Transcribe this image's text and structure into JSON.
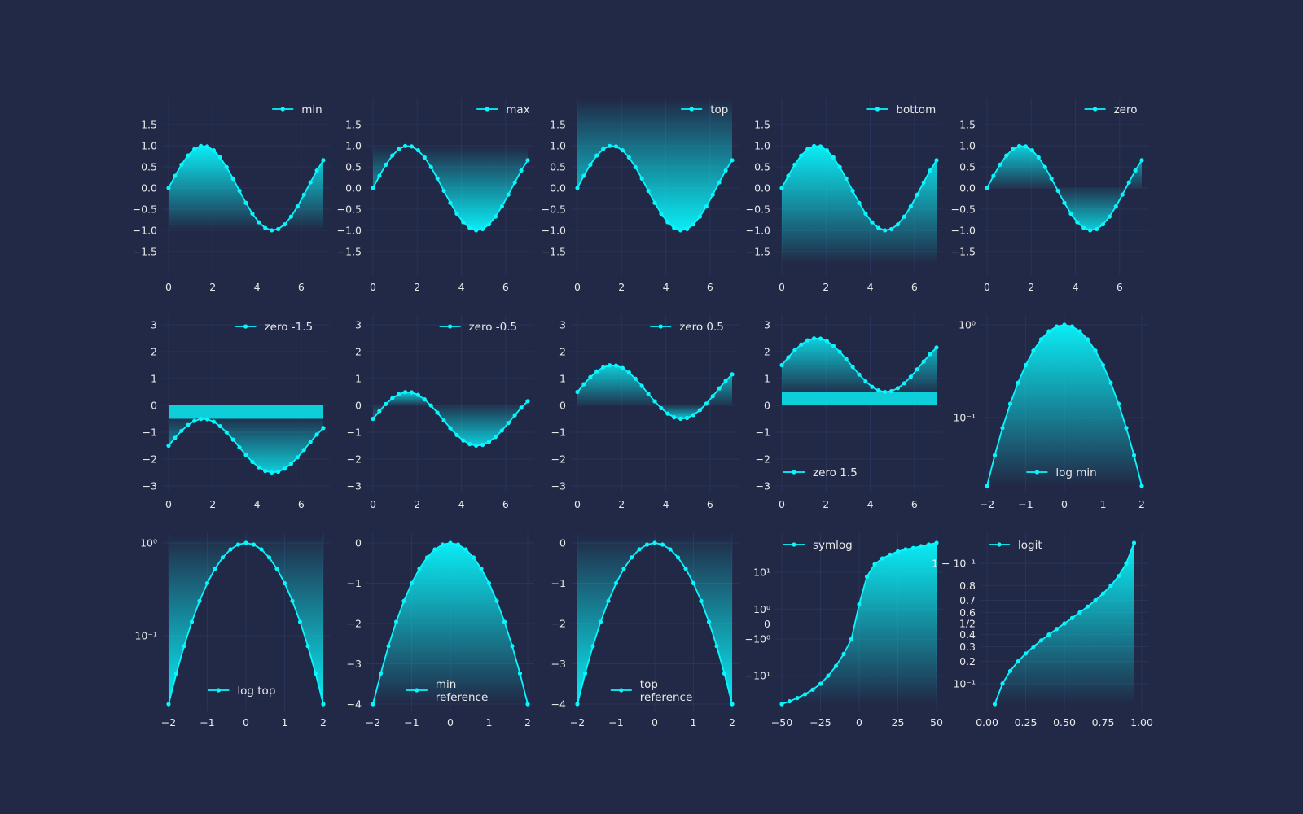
{
  "chart_data": [
    {
      "type": "area",
      "legend": "min",
      "legend_pos": "top-right",
      "x_range": [
        -0.3,
        7.3
      ],
      "y_range": [
        -1.75,
        1.75
      ],
      "x_ticks": [
        "0",
        "2",
        "4",
        "6"
      ],
      "y_ticks": [
        "−1.5",
        "−1.0",
        "−0.5",
        "0.0",
        "0.5",
        "1.0",
        "1.5"
      ],
      "series": [
        {
          "offset": 0
        }
      ],
      "fill_mode": "min"
    },
    {
      "type": "area",
      "legend": "max",
      "legend_pos": "top-right",
      "x_range": [
        -0.3,
        7.3
      ],
      "y_range": [
        -1.75,
        1.75
      ],
      "x_ticks": [
        "0",
        "2",
        "4",
        "6"
      ],
      "y_ticks": [
        "−1.5",
        "−1.0",
        "−0.5",
        "0.0",
        "0.5",
        "1.0",
        "1.5"
      ],
      "series": [
        {
          "offset": 0
        }
      ],
      "fill_mode": "max"
    },
    {
      "type": "area",
      "legend": "top",
      "legend_pos": "top-right",
      "x_range": [
        -0.3,
        7.3
      ],
      "y_range": [
        -1.75,
        1.75
      ],
      "x_ticks": [
        "0",
        "2",
        "4",
        "6"
      ],
      "y_ticks": [
        "−1.5",
        "−1.0",
        "−0.5",
        "0.0",
        "0.5",
        "1.0",
        "1.5"
      ],
      "series": [
        {
          "offset": 0
        }
      ],
      "fill_mode": "top"
    },
    {
      "type": "area",
      "legend": "bottom",
      "legend_pos": "top-right",
      "x_range": [
        -0.3,
        7.3
      ],
      "y_range": [
        -1.75,
        1.75
      ],
      "x_ticks": [
        "0",
        "2",
        "4",
        "6"
      ],
      "y_ticks": [
        "−1.5",
        "−1.0",
        "−0.5",
        "0.0",
        "0.5",
        "1.0",
        "1.5"
      ],
      "series": [
        {
          "offset": 0
        }
      ],
      "fill_mode": "bottom"
    },
    {
      "type": "area",
      "legend": "zero",
      "legend_pos": "top-right",
      "x_range": [
        -0.3,
        7.3
      ],
      "y_range": [
        -1.75,
        1.75
      ],
      "x_ticks": [
        "0",
        "2",
        "4",
        "6"
      ],
      "y_ticks": [
        "−1.5",
        "−1.0",
        "−0.5",
        "0.0",
        "0.5",
        "1.0",
        "1.5"
      ],
      "series": [
        {
          "offset": 0
        }
      ],
      "fill_mode": "zero"
    },
    {
      "type": "area",
      "legend": "zero -1.5",
      "legend_pos": "top-right",
      "x_range": [
        -0.3,
        7.3
      ],
      "y_range": [
        -3,
        3
      ],
      "x_ticks": [
        "0",
        "2",
        "4",
        "6"
      ],
      "y_ticks": [
        "−3",
        "−2",
        "−1",
        "0",
        "1",
        "2",
        "3"
      ],
      "series": [
        {
          "offset": -1.5
        }
      ],
      "fill_mode": "zero"
    },
    {
      "type": "area",
      "legend": "zero -0.5",
      "legend_pos": "top-right",
      "x_range": [
        -0.3,
        7.3
      ],
      "y_range": [
        -3,
        3
      ],
      "x_ticks": [
        "0",
        "2",
        "4",
        "6"
      ],
      "y_ticks": [
        "−3",
        "−2",
        "−1",
        "0",
        "1",
        "2",
        "3"
      ],
      "series": [
        {
          "offset": -0.5
        }
      ],
      "fill_mode": "zero"
    },
    {
      "type": "area",
      "legend": "zero 0.5",
      "legend_pos": "top-right",
      "x_range": [
        -0.3,
        7.3
      ],
      "y_range": [
        -3,
        3
      ],
      "x_ticks": [
        "0",
        "2",
        "4",
        "6"
      ],
      "y_ticks": [
        "−3",
        "−2",
        "−1",
        "0",
        "1",
        "2",
        "3"
      ],
      "series": [
        {
          "offset": 0.5
        }
      ],
      "fill_mode": "zero"
    },
    {
      "type": "area",
      "legend": "zero 1.5",
      "legend_pos": "bottom-left",
      "x_range": [
        -0.3,
        7.3
      ],
      "y_range": [
        -3,
        3
      ],
      "x_ticks": [
        "0",
        "2",
        "4",
        "6"
      ],
      "y_ticks": [
        "−3",
        "−2",
        "−1",
        "0",
        "1",
        "2",
        "3"
      ],
      "series": [
        {
          "offset": 1.5
        }
      ],
      "fill_mode": "zero"
    },
    {
      "type": "area",
      "legend": "log min",
      "legend_pos": "bottom-center",
      "x_range": [
        -2.2,
        2.2
      ],
      "y_scale": "log",
      "x_ticks": [
        "−2",
        "−1",
        "0",
        "1",
        "2"
      ],
      "y_ticks": [
        "10⁰",
        "10⁻¹"
      ],
      "series": [
        {
          "function": "exp(-x^2)"
        }
      ],
      "fill_mode": "min"
    },
    {
      "type": "area",
      "legend": "log top",
      "legend_pos": "bottom-center",
      "x_range": [
        -2.2,
        2.2
      ],
      "y_scale": "log",
      "x_ticks": [
        "−2",
        "−1",
        "0",
        "1",
        "2"
      ],
      "y_ticks": [
        "10⁰",
        "10⁻¹"
      ],
      "series": [
        {
          "function": "exp(-x^2)"
        }
      ],
      "fill_mode": "top"
    },
    {
      "type": "area",
      "legend": "min\nreference",
      "legend_pos": "bottom-center",
      "x_range": [
        -2.2,
        2.2
      ],
      "y_range": [
        -4.1,
        0.1
      ],
      "x_ticks": [
        "−2",
        "−1",
        "0",
        "1",
        "2"
      ],
      "y_ticks": [
        "0",
        "−1",
        "−2",
        "−3",
        "−4"
      ],
      "series": [
        {
          "function": "-x^2"
        }
      ],
      "fill_mode": "min"
    },
    {
      "type": "area",
      "legend": "top\nreference",
      "legend_pos": "bottom-center",
      "x_range": [
        -2.2,
        2.2
      ],
      "y_range": [
        -4.1,
        0.1
      ],
      "x_ticks": [
        "−2",
        "−1",
        "0",
        "1",
        "2"
      ],
      "y_ticks": [
        "0",
        "−1",
        "−2",
        "−3",
        "−4"
      ],
      "series": [
        {
          "function": "-x^2"
        }
      ],
      "fill_mode": "top"
    },
    {
      "type": "area",
      "legend": "symlog",
      "legend_pos": "top-left",
      "x_range": [
        -52,
        52
      ],
      "y_scale": "symlog",
      "x_ticks": [
        "−50",
        "−25",
        "0",
        "25",
        "50"
      ],
      "y_ticks": [
        "10¹",
        "10⁰",
        "0",
        "−10⁰",
        "−10¹"
      ],
      "series": [
        {
          "values_y": [
            -40,
            -35,
            -30,
            -25,
            -20,
            -15,
            -10,
            -6,
            -3,
            -1,
            1.5,
            8,
            15,
            20,
            24,
            28,
            31,
            33,
            36,
            39,
            42
          ]
        }
      ],
      "fill_mode": "min"
    },
    {
      "type": "area",
      "legend": "logit",
      "legend_pos": "top-left",
      "x_range": [
        -0.05,
        1.05
      ],
      "y_scale": "logit",
      "x_ticks": [
        "0.00",
        "0.25",
        "0.50",
        "0.75",
        "1.00"
      ],
      "y_ticks": [
        "1 − 10⁻¹",
        "0.8",
        "0.7",
        "0.6",
        "1/2",
        "0.4",
        "0.3",
        "0.2",
        "10⁻¹"
      ],
      "series": [
        {
          "values_x": [
            0.05,
            0.1,
            0.15,
            0.2,
            0.25,
            0.3,
            0.35,
            0.4,
            0.45,
            0.5,
            0.55,
            0.6,
            0.65,
            0.7,
            0.75,
            0.8,
            0.85,
            0.9,
            0.95
          ]
        }
      ],
      "fill_mode": "min"
    }
  ],
  "colors": {
    "background": "#212946",
    "grid": "#2A3459",
    "line": "#08F7FE",
    "text": "#e8e8e8"
  }
}
